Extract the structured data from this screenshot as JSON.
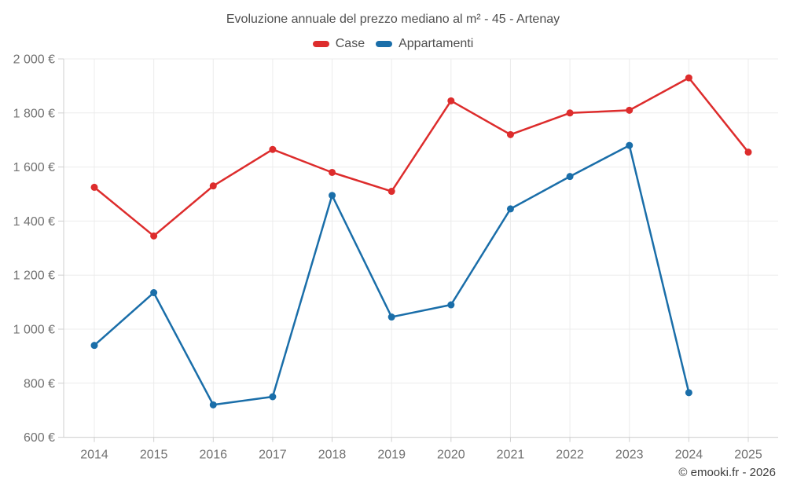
{
  "title": "Evoluzione annuale del prezzo mediano al m² - 45 - Artenay",
  "legend": {
    "items": [
      {
        "label": "Case",
        "color": "#dd2c2c"
      },
      {
        "label": "Appartamenti",
        "color": "#1a6ea9"
      }
    ]
  },
  "footer": {
    "credit": "© emooki.fr - 2026"
  },
  "chart_data": {
    "type": "line",
    "title": "Evoluzione annuale del prezzo mediano al m² - 45 - Artenay",
    "x": [
      2014,
      2015,
      2016,
      2017,
      2018,
      2019,
      2020,
      2021,
      2022,
      2023,
      2024,
      2025
    ],
    "series": [
      {
        "name": "Case",
        "color": "#dd2c2c",
        "values": [
          1525,
          1345,
          1530,
          1665,
          1580,
          1510,
          1845,
          1720,
          1800,
          1810,
          1930,
          1655
        ]
      },
      {
        "name": "Appartamenti",
        "color": "#1a6ea9",
        "values": [
          940,
          1135,
          720,
          750,
          1495,
          1045,
          1090,
          1445,
          1565,
          1680,
          765,
          null
        ]
      }
    ],
    "ylim": [
      600,
      2000
    ],
    "ytick_step": 200,
    "ytick_labels": [
      "600 €",
      "800 €",
      "1 000 €",
      "1 200 €",
      "1 400 €",
      "1 600 €",
      "1 800 €",
      "2 000 €"
    ],
    "xtick_labels": [
      "2014",
      "2015",
      "2016",
      "2017",
      "2018",
      "2019",
      "2020",
      "2021",
      "2022",
      "2023",
      "2024",
      "2025"
    ],
    "grid": true,
    "legend_position": "top",
    "unit": "€"
  },
  "colors": {
    "background": "#ffffff",
    "grid": "#ececec",
    "axis": "#cfcfcf",
    "tick_label": "#717171"
  }
}
